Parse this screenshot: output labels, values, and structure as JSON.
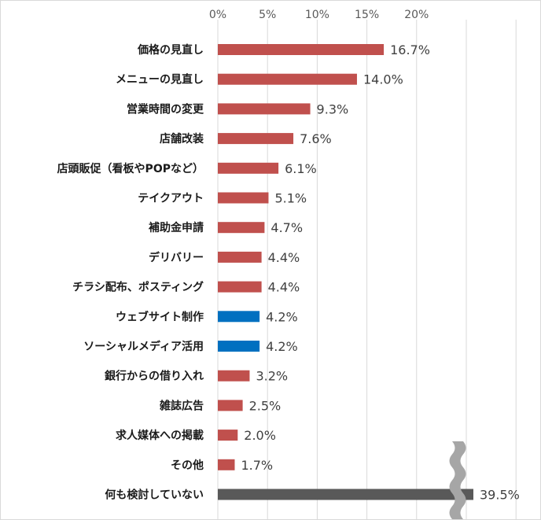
{
  "chart_data": {
    "type": "bar",
    "orientation": "horizontal",
    "title": "",
    "xlabel": "",
    "ylabel": "",
    "xlim": [
      0,
      30
    ],
    "ticks": [
      {
        "value": 0,
        "label": "0%"
      },
      {
        "value": 5,
        "label": "5%"
      },
      {
        "value": 10,
        "label": "10%"
      },
      {
        "value": 15,
        "label": "15%"
      },
      {
        "value": 20,
        "label": "20%"
      }
    ],
    "grid": true,
    "axis_break": {
      "after_value": 23,
      "note": "bar for 何も検討していない is truncated with a break mark"
    },
    "categories": [
      "価格の見直し",
      "メニューの見直し",
      "営業時間の変更",
      "店舗改装",
      "店頭販促（看板やPOPなど）",
      "テイクアウト",
      "補助金申請",
      "デリバリー",
      "チラシ配布、ポスティング",
      "ウェブサイト制作",
      "ソーシャルメディア活用",
      "銀行からの借り入れ",
      "雑誌広告",
      "求人媒体への掲載",
      "その他",
      "何も検討していない"
    ],
    "values": [
      16.7,
      14.0,
      9.3,
      7.6,
      6.1,
      5.1,
      4.7,
      4.4,
      4.4,
      4.2,
      4.2,
      3.2,
      2.5,
      2.0,
      1.7,
      39.5
    ],
    "value_labels": [
      "16.7%",
      "14.0%",
      "9.3%",
      "7.6%",
      "6.1%",
      "5.1%",
      "4.7%",
      "4.4%",
      "4.4%",
      "4.2%",
      "4.2%",
      "3.2%",
      "2.5%",
      "2.0%",
      "1.7%",
      "39.5%"
    ],
    "bar_colors": [
      "#c0504d",
      "#c0504d",
      "#c0504d",
      "#c0504d",
      "#c0504d",
      "#c0504d",
      "#c0504d",
      "#c0504d",
      "#c0504d",
      "#0070c0",
      "#0070c0",
      "#c0504d",
      "#c0504d",
      "#c0504d",
      "#c0504d",
      "#595959"
    ],
    "colors": {
      "grid": "#d9d9d9",
      "break_mark": "#a6a6a6"
    }
  }
}
